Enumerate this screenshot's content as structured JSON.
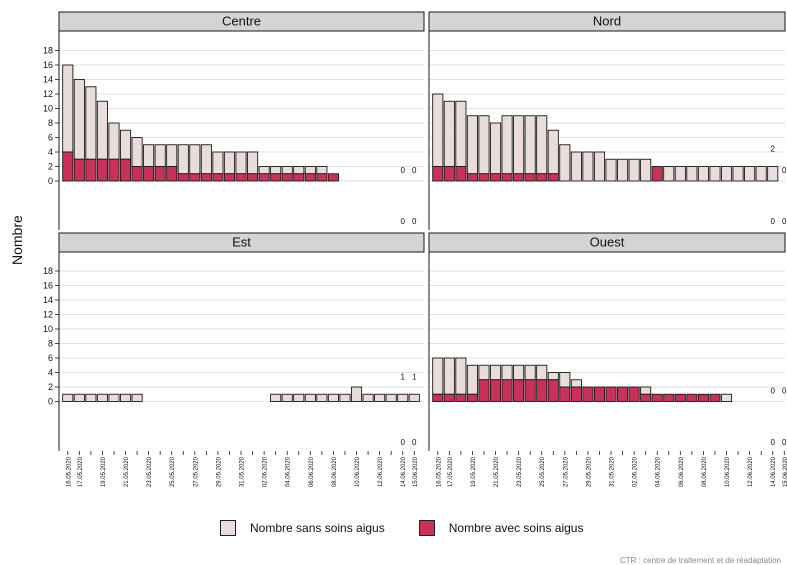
{
  "chart_data": {
    "type": "bar",
    "stacked": true,
    "ylabel": "Nombre",
    "ylim": [
      0,
      18
    ],
    "yticks": [
      0,
      2,
      4,
      6,
      8,
      10,
      12,
      14,
      16,
      18
    ],
    "dates": [
      "16.05.2020",
      "17.05.2020",
      "18.05.2020",
      "19.05.2020",
      "20.05.2020",
      "21.05.2020",
      "22.05.2020",
      "23.05.2020",
      "24.05.2020",
      "25.05.2020",
      "26.05.2020",
      "27.05.2020",
      "28.05.2020",
      "29.05.2020",
      "30.05.2020",
      "31.05.2020",
      "01.06.2020",
      "02.06.2020",
      "03.06.2020",
      "04.06.2020",
      "05.06.2020",
      "06.06.2020",
      "07.06.2020",
      "08.06.2020",
      "09.06.2020",
      "10.06.2020",
      "11.06.2020",
      "12.06.2020",
      "13.06.2020",
      "14.06.2020",
      "15.06.2020"
    ],
    "tick_labels": [
      "16.05.2020",
      "17.05.2020",
      "",
      "19.05.2020",
      "",
      "21.05.2020",
      "",
      "23.05.2020",
      "",
      "25.05.2020",
      "",
      "27.05.2020",
      "",
      "29.05.2020",
      "",
      "31.05.2020",
      "",
      "02.06.2020",
      "",
      "04.06.2020",
      "",
      "06.06.2020",
      "",
      "08.06.2020",
      "",
      "10.06.2020",
      "",
      "12.06.2020",
      "",
      "14.06.2020",
      "15.06.2020"
    ],
    "series_names": [
      "Nombre sans soins aigus",
      "Nombre avec soins aigus"
    ],
    "colors": {
      "sans": "#e8ddda",
      "avec": "#c8325a",
      "border": "#1a1a1a",
      "grid": "#d9d9d9",
      "strip": "#d4d4d4"
    },
    "panels": [
      {
        "name": "Centre",
        "total": [
          16,
          14,
          13,
          11,
          8,
          7,
          6,
          5,
          5,
          5,
          5,
          5,
          5,
          4,
          4,
          4,
          4,
          2,
          2,
          2,
          2,
          2,
          2,
          1,
          0,
          0,
          0,
          0,
          0,
          0,
          0
        ],
        "avec": [
          4,
          3,
          3,
          3,
          3,
          3,
          2,
          2,
          2,
          2,
          1,
          1,
          1,
          1,
          1,
          1,
          1,
          1,
          1,
          1,
          1,
          1,
          1,
          1,
          0,
          0,
          0,
          0,
          0,
          0,
          0
        ],
        "top_annotations": {
          "29": "0",
          "30": "0"
        },
        "bottom_annotations": {
          "29": "0",
          "30": "0"
        }
      },
      {
        "name": "Nord",
        "total": [
          12,
          11,
          11,
          9,
          9,
          8,
          9,
          9,
          9,
          9,
          7,
          5,
          4,
          4,
          4,
          3,
          3,
          3,
          3,
          2,
          2,
          2,
          2,
          2,
          2,
          2,
          2,
          2,
          2,
          2,
          0
        ],
        "avec": [
          2,
          2,
          2,
          1,
          1,
          1,
          1,
          1,
          1,
          1,
          1,
          0,
          0,
          0,
          0,
          0,
          0,
          0,
          0,
          2,
          0,
          0,
          0,
          0,
          0,
          0,
          0,
          0,
          0,
          0,
          0
        ],
        "top_annotations": {
          "29": "2",
          "30": "0"
        },
        "bottom_annotations": {
          "29": "0",
          "30": "0"
        }
      },
      {
        "name": "Est",
        "total": [
          1,
          1,
          1,
          1,
          1,
          1,
          1,
          0,
          0,
          0,
          0,
          0,
          0,
          0,
          0,
          0,
          0,
          0,
          1,
          1,
          1,
          1,
          1,
          1,
          1,
          2,
          1,
          1,
          1,
          1,
          1
        ],
        "avec": [
          0,
          0,
          0,
          0,
          0,
          0,
          0,
          0,
          0,
          0,
          0,
          0,
          0,
          0,
          0,
          0,
          0,
          0,
          0,
          0,
          0,
          0,
          0,
          0,
          0,
          0,
          0,
          0,
          0,
          0,
          0
        ],
        "top_annotations": {
          "29": "1",
          "30": "1"
        },
        "bottom_annotations": {
          "29": "0",
          "30": "0"
        }
      },
      {
        "name": "Ouest",
        "total": [
          6,
          6,
          6,
          5,
          5,
          5,
          5,
          5,
          5,
          5,
          4,
          4,
          3,
          2,
          2,
          2,
          2,
          2,
          2,
          1,
          1,
          1,
          1,
          1,
          1,
          1,
          0,
          0,
          0,
          0,
          0
        ],
        "avec": [
          1,
          1,
          1,
          1,
          3,
          3,
          3,
          3,
          3,
          3,
          3,
          2,
          2,
          2,
          2,
          2,
          2,
          2,
          1,
          1,
          1,
          1,
          1,
          1,
          1,
          0,
          0,
          0,
          0,
          0,
          0
        ],
        "top_annotations": {
          "29": "0",
          "30": "0"
        },
        "bottom_annotations": {
          "29": "0",
          "30": "0"
        }
      }
    ]
  },
  "legend": {
    "sans_label": "Nombre sans soins aigus",
    "avec_label": "Nombre avec soins aigus"
  },
  "caption": "CTR : centre de traitement et de réadaptation"
}
